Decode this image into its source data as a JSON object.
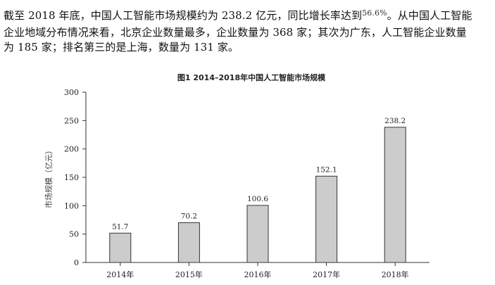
{
  "document": {
    "line1_pre": "截至 2018 年底，中国人工智能市场规模约为 238.2 亿元，同比增长率达到",
    "line1_pct": "56.6%",
    "line1_post": "。从中国人工智能",
    "line2": "企业地域分布情况来看，北京企业数量最多，企业数量为 368 家；其次为广东，人工智能企业数量",
    "line3": "为 185 家；排名第三的是上海，数量为 131 家。"
  },
  "chart_data": {
    "type": "bar",
    "title": "图1    2014–2018年中国人工智能市场规模",
    "ylabel": "市场规模（亿元）",
    "xlabel": "",
    "categories": [
      "2014年",
      "2015年",
      "2016年",
      "2017年",
      "2018年"
    ],
    "values": [
      51.7,
      70.2,
      100.6,
      152.1,
      238.2
    ],
    "value_labels": [
      "51.7",
      "70.2",
      "100.6",
      "152.1",
      "238.2"
    ],
    "ylim": [
      0,
      300
    ],
    "yticks": [
      "0",
      "50",
      "100",
      "150",
      "200",
      "250",
      "300"
    ],
    "bar_color": "#cccccc",
    "bar_edge_color": "#333333",
    "grid": false,
    "legend": "none"
  }
}
